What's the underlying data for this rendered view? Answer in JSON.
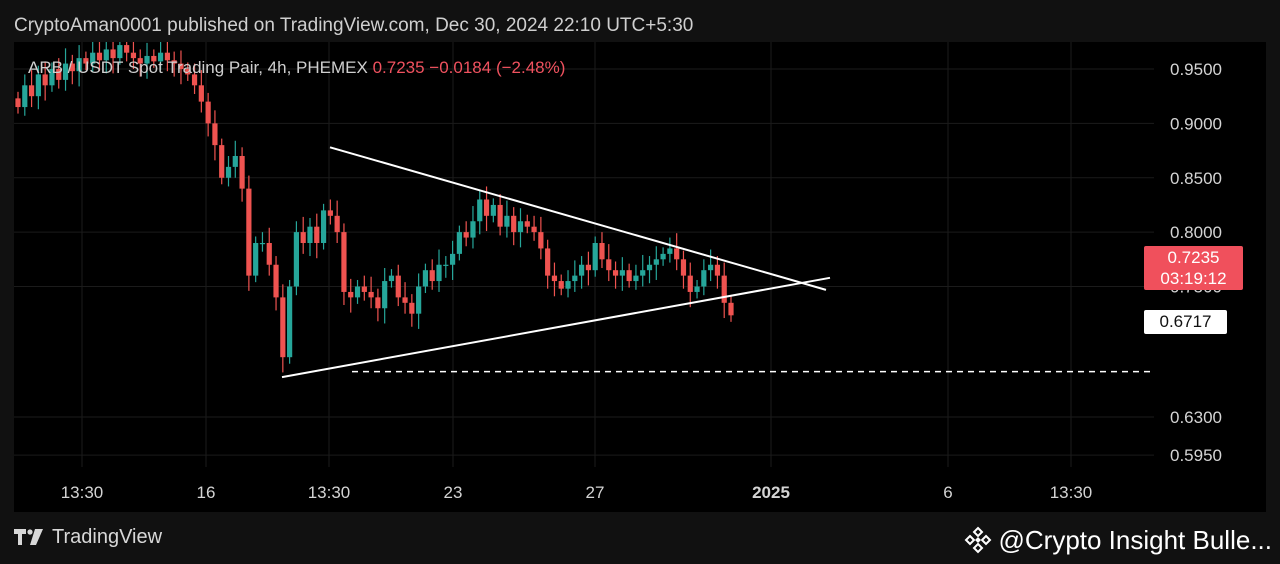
{
  "header": {
    "publisher_line": "CryptoAman0001 published on TradingView.com, Dec 30, 2024 22:10 UTC+5:30"
  },
  "legend": {
    "symbol": "ARB / USDT Spot Trading Pair, 4h, PHEMEX",
    "last": "0.7235",
    "change": "−0.0184 (−2.48%)"
  },
  "price_badge": {
    "price": "0.7235",
    "countdown": "03:19:12"
  },
  "level_badge": {
    "price": "0.6717"
  },
  "footer": {
    "brand": "TradingView",
    "watermark": "@Crypto Insight Bulle..."
  },
  "colors": {
    "up": "#26a69a",
    "down": "#ef5350",
    "background": "#000000",
    "trendline": "#ffffff"
  },
  "icons": {
    "brand": "tradingview-logo-icon",
    "watermark": "binance-diamond-icon"
  },
  "chart_data": {
    "type": "candlestick",
    "y_ticks": [
      "0.9500",
      "0.9000",
      "0.8500",
      "0.8000",
      "0.7500",
      "0.7235",
      "0.6717",
      "0.6300",
      "0.5950"
    ],
    "y_tick_values": [
      0.95,
      0.9,
      0.85,
      0.8,
      0.75,
      0.7235,
      0.6717,
      0.63,
      0.595
    ],
    "x_ticks": [
      {
        "label": "13:30",
        "bold": false
      },
      {
        "label": "16",
        "bold": false
      },
      {
        "label": "13:30",
        "bold": false
      },
      {
        "label": "23",
        "bold": false
      },
      {
        "label": "27",
        "bold": false
      },
      {
        "label": "2025",
        "bold": true
      },
      {
        "label": "6",
        "bold": false
      },
      {
        "label": "13:30",
        "bold": false
      }
    ],
    "closes": [
      0.915,
      0.935,
      0.925,
      0.945,
      0.935,
      0.95,
      0.94,
      0.955,
      0.948,
      0.96,
      0.955,
      0.965,
      0.958,
      0.968,
      0.96,
      0.972,
      0.965,
      0.96,
      0.955,
      0.962,
      0.957,
      0.965,
      0.958,
      0.955,
      0.95,
      0.945,
      0.935,
      0.92,
      0.9,
      0.88,
      0.85,
      0.86,
      0.87,
      0.84,
      0.76,
      0.79,
      0.79,
      0.77,
      0.74,
      0.685,
      0.75,
      0.8,
      0.79,
      0.805,
      0.79,
      0.82,
      0.815,
      0.8,
      0.745,
      0.74,
      0.75,
      0.745,
      0.74,
      0.73,
      0.755,
      0.76,
      0.74,
      0.735,
      0.725,
      0.75,
      0.765,
      0.755,
      0.77,
      0.77,
      0.78,
      0.8,
      0.795,
      0.81,
      0.83,
      0.815,
      0.825,
      0.805,
      0.815,
      0.8,
      0.81,
      0.805,
      0.8,
      0.785,
      0.76,
      0.755,
      0.748,
      0.755,
      0.76,
      0.77,
      0.765,
      0.79,
      0.775,
      0.765,
      0.76,
      0.765,
      0.755,
      0.76,
      0.765,
      0.77,
      0.775,
      0.78,
      0.785,
      0.775,
      0.76,
      0.745,
      0.75,
      0.765,
      0.77,
      0.76,
      0.735,
      0.7235
    ],
    "annotations": {
      "upper_trendline": [
        [
          0.878,
          0
        ],
        [
          0.7469,
          1
        ]
      ],
      "lower_trendline": [
        [
          0.6667,
          0
        ],
        [
          0.758,
          1
        ]
      ],
      "support_level": 0.6717
    }
  }
}
